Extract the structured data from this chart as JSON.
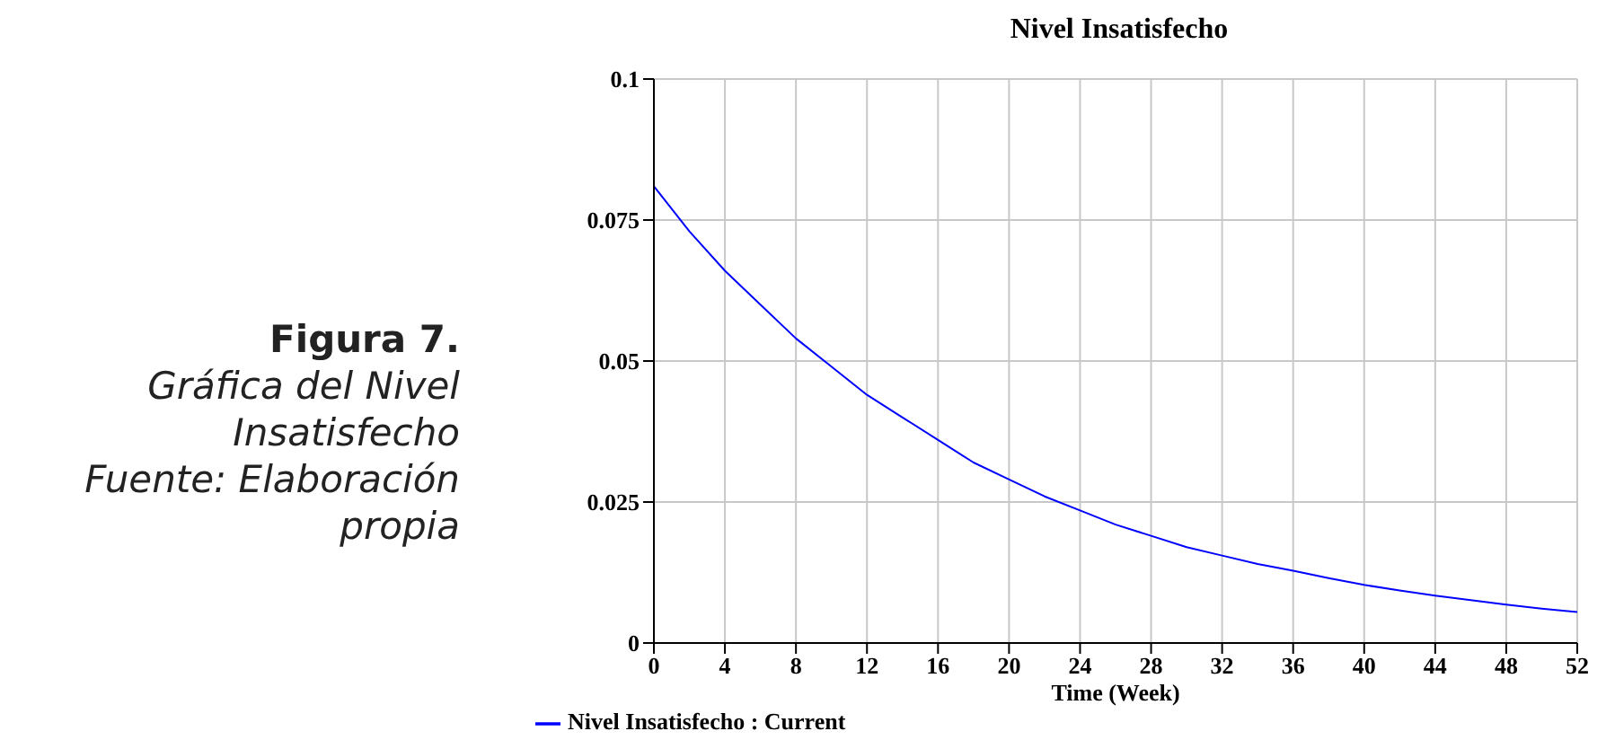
{
  "chart_data": {
    "type": "line",
    "title": "Nivel Insatisfecho",
    "xlabel": "Time (Week)",
    "annotations": [
      "Figura 7.",
      "Gráfica del Nivel Insatisfecho",
      "Fuente: Elaboración propia"
    ],
    "x": [
      0,
      2,
      4,
      6,
      8,
      10,
      12,
      14,
      16,
      18,
      20,
      22,
      24,
      26,
      28,
      30,
      32,
      34,
      36,
      38,
      40,
      42,
      44,
      46,
      48,
      50,
      52
    ],
    "series": [
      {
        "name": "Nivel Insatisfecho : Current",
        "color": "#0000ff",
        "values": [
          0.081,
          0.073,
          0.066,
          0.06,
          0.054,
          0.049,
          0.044,
          0.04,
          0.036,
          0.032,
          0.029,
          0.026,
          0.0235,
          0.021,
          0.019,
          0.017,
          0.0155,
          0.014,
          0.0128,
          0.0115,
          0.0103,
          0.0093,
          0.0084,
          0.0076,
          0.0068,
          0.0061,
          0.0055
        ]
      }
    ],
    "xlim": [
      0,
      52
    ],
    "xticks": [
      0,
      4,
      8,
      12,
      16,
      20,
      24,
      28,
      32,
      36,
      40,
      44,
      48,
      52
    ],
    "ylim": [
      0,
      0.1
    ],
    "yticks": [
      0,
      0.025,
      0.05,
      0.075,
      0.1
    ],
    "grid": true,
    "legend": "bottom",
    "marker": "none",
    "line_style": "solid"
  }
}
